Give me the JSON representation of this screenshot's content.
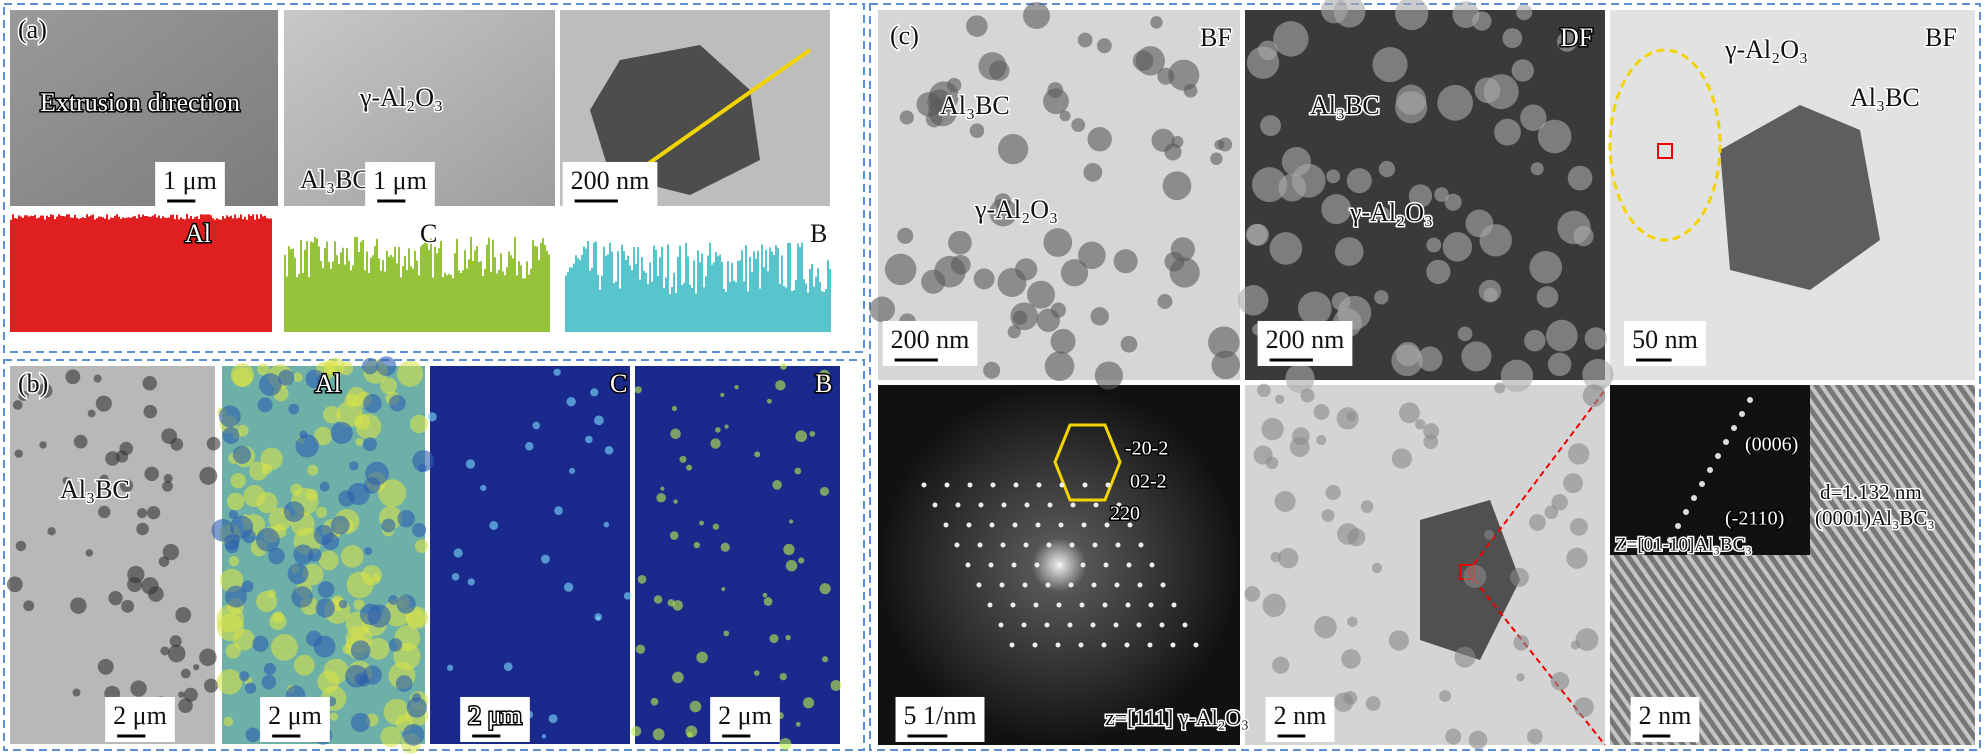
{
  "panel_a": {
    "label": "(a)",
    "images": [
      {
        "text": "Extrusion direction",
        "scale_bar": "1 μm"
      },
      {
        "labels": [
          "γ-Al₂O₃",
          "Al₃BC"
        ],
        "scale_bar": "1 μm"
      },
      {
        "scale_bar": "200 nm"
      }
    ],
    "spectra": [
      "Al",
      "C",
      "B"
    ]
  },
  "panel_b": {
    "label": "(b)",
    "images": [
      {
        "label": "Al₃BC",
        "scale_bar": "2 μm"
      },
      {
        "label": "Al",
        "scale_bar": "2 μm"
      },
      {
        "label": "C",
        "scale_bar": "2 μm"
      },
      {
        "label": "B",
        "scale_bar": "2 μm"
      }
    ]
  },
  "panel_c": {
    "label": "(c)",
    "top": [
      {
        "mode": "BF",
        "labels": [
          "Al₃BC",
          "γ-Al₂O₃"
        ],
        "scale_bar": "200 nm"
      },
      {
        "mode": "DF",
        "labels": [
          "Al₃BC",
          "γ-Al₂O₃"
        ],
        "scale_bar": "200 nm"
      },
      {
        "mode": "BF",
        "labels": [
          "γ-Al₂O₃",
          "Al₃BC"
        ],
        "scale_bar": "50 nm"
      }
    ],
    "bottom": [
      {
        "spots": [
          "-20-2",
          "02-2",
          "220"
        ],
        "scale_bar": "5 1/nm",
        "zone": "z=[111] γ-Al₂O₃"
      },
      {
        "scale_bar": "2 nm"
      },
      {
        "spots": [
          "(0006)",
          "(-2110)"
        ],
        "zone": "Z=[01-10]Al₃BC₃",
        "spacing": "d=1.132 nm",
        "plane": "(0001)Al₃BC₃",
        "scale_bar": "2 nm"
      }
    ]
  }
}
